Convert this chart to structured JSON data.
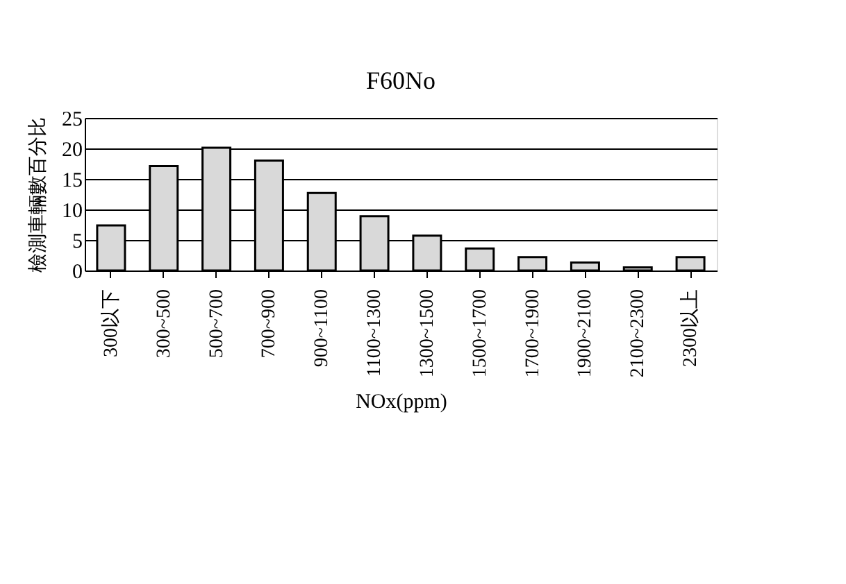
{
  "chart_data": {
    "type": "bar",
    "title": "F60No",
    "xlabel": "NOx(ppm)",
    "ylabel": "檢測車輛數百分比",
    "categories": [
      "300以下",
      "300~500",
      "500~700",
      "700~900",
      "900~1100",
      "1100~1300",
      "1300~1500",
      "1500~1700",
      "1700~1900",
      "1900~2100",
      "2100~2300",
      "2300以上"
    ],
    "values": [
      7.4,
      17.1,
      20.1,
      18.0,
      12.7,
      8.9,
      5.7,
      3.6,
      2.2,
      1.3,
      0.5,
      2.2
    ],
    "color": "#d9d9d9",
    "ylim": [
      0,
      25
    ],
    "yticks": [
      0,
      5,
      10,
      15,
      20,
      25
    ],
    "grid": "y"
  }
}
